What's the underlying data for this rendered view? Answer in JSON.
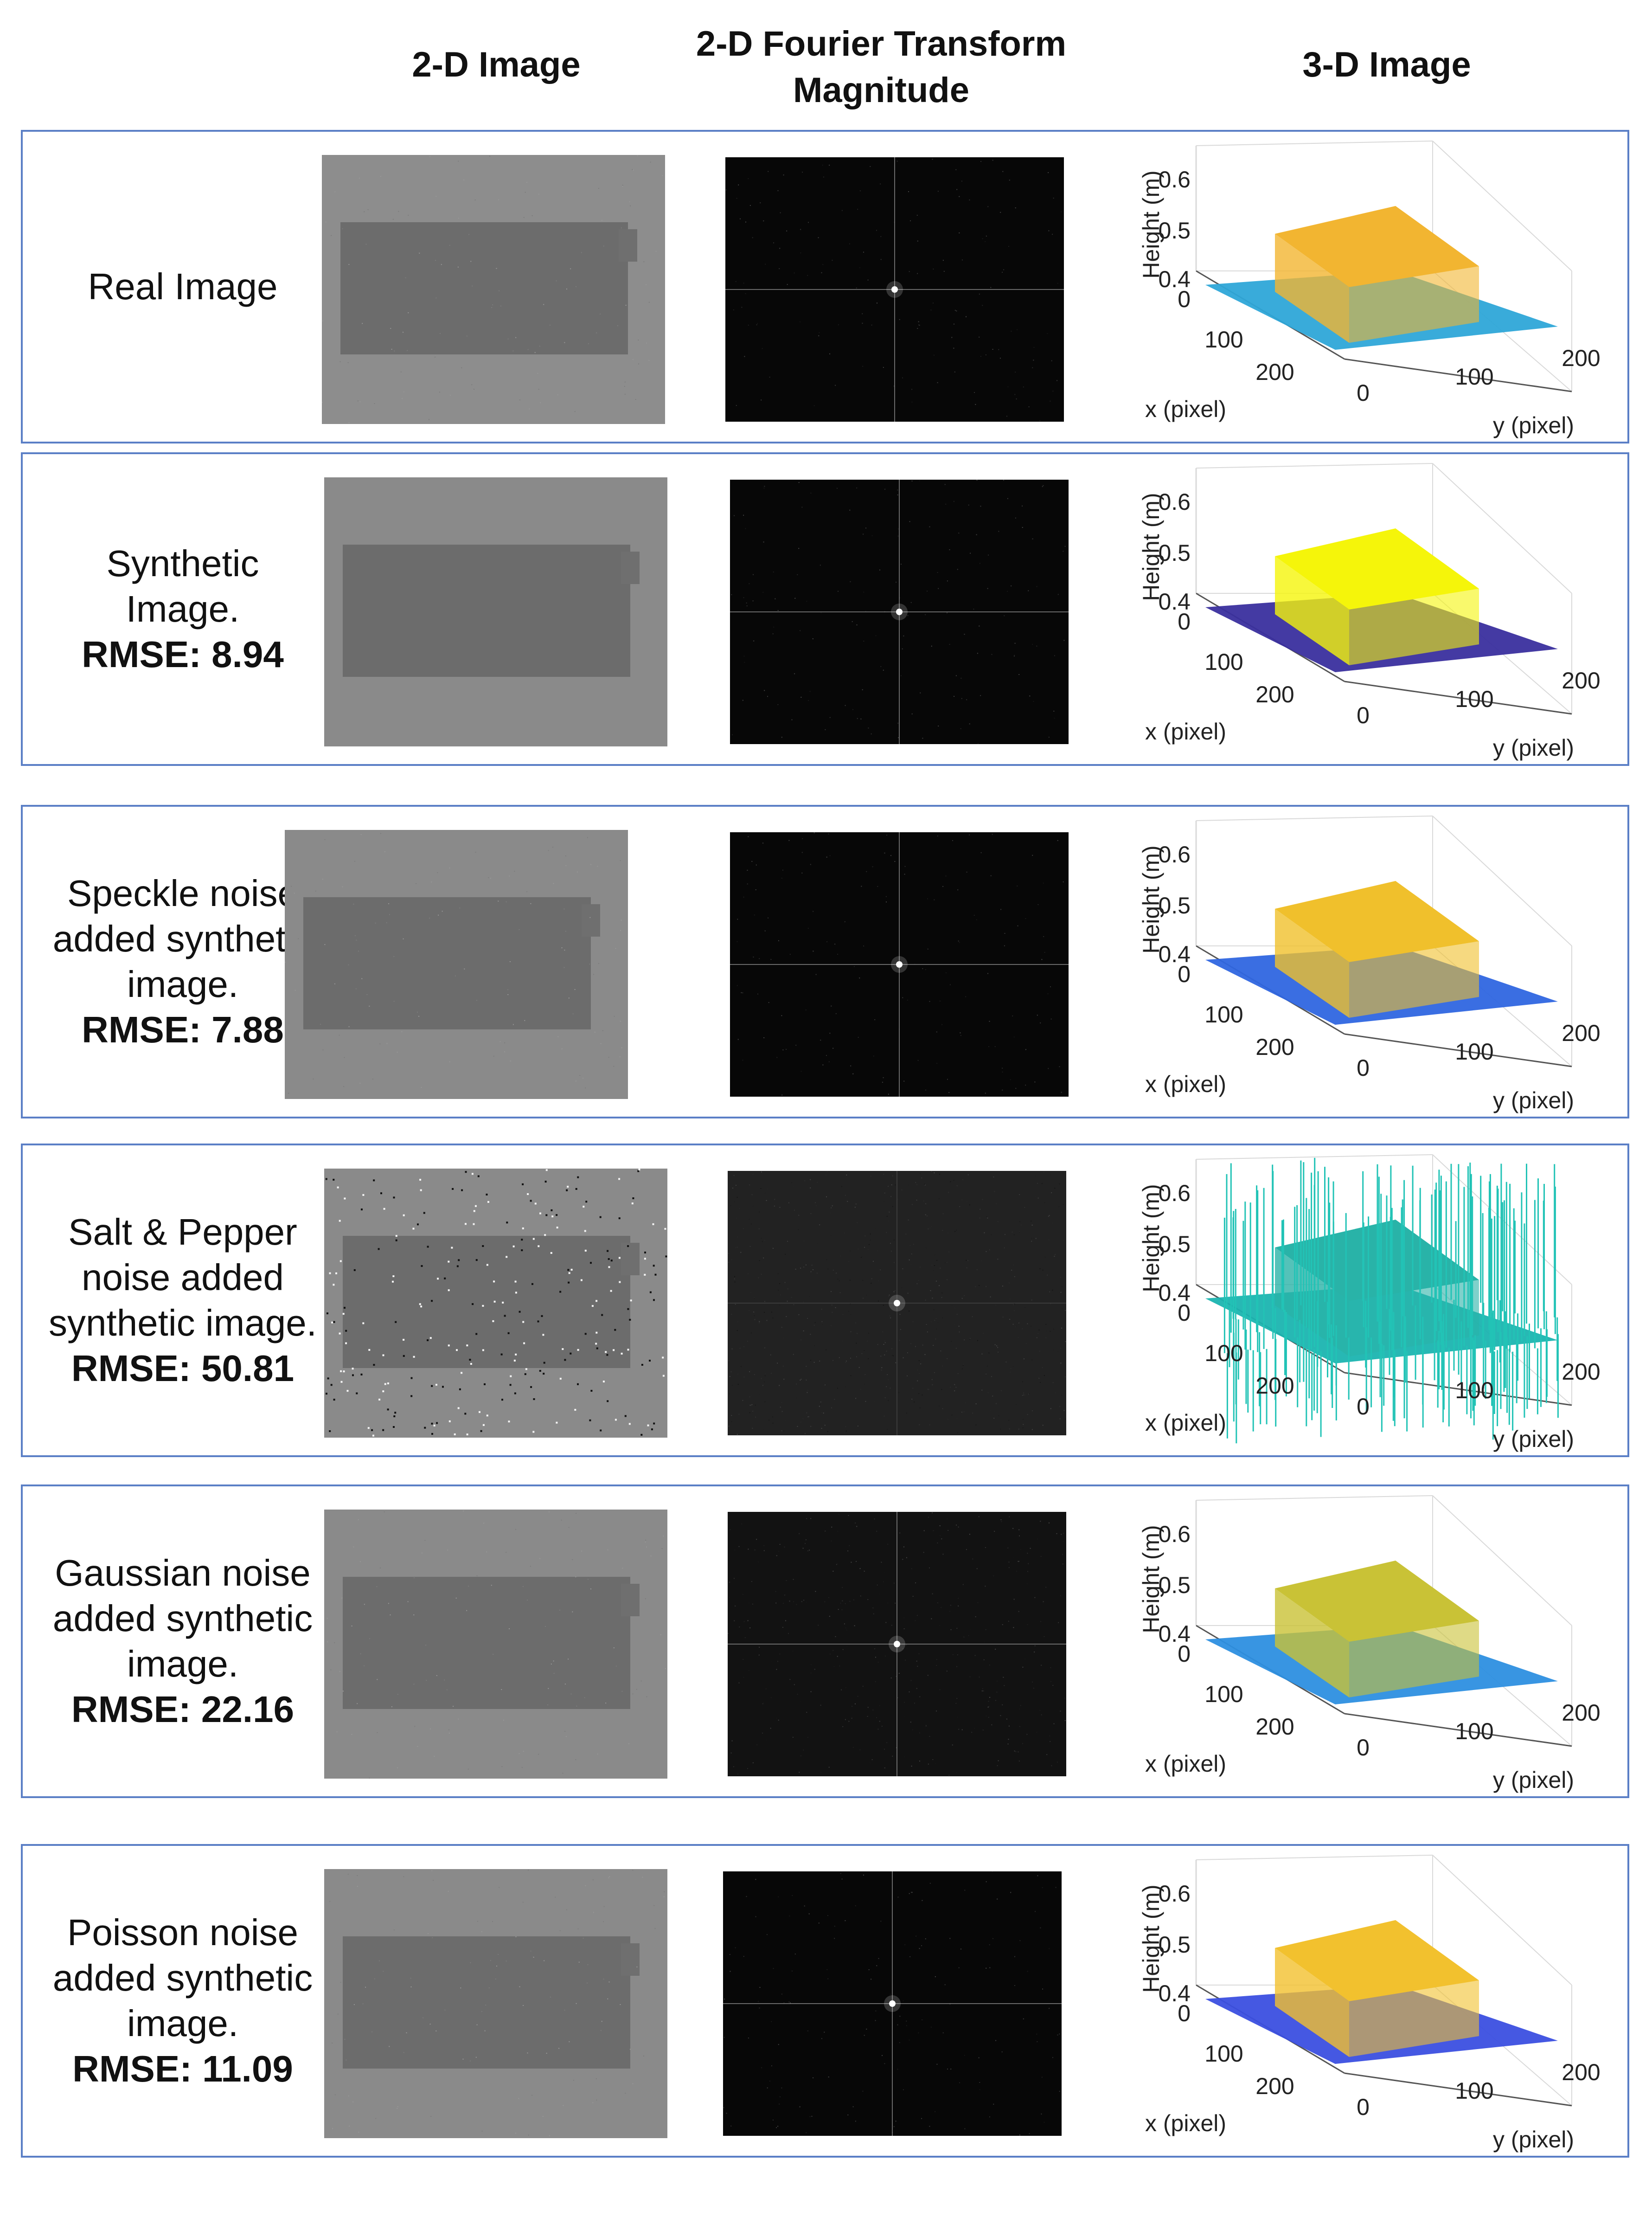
{
  "column_headers": {
    "image_2d": "2-D Image",
    "fourier_line1": "2-D Fourier Transform",
    "fourier_line2": "Magnitude",
    "image_3d": "3-D Image"
  },
  "axes": {
    "z_label": "Height (m)",
    "x_label": "x (pixel)",
    "y_label": "y (pixel)",
    "z_ticks": [
      "0.6",
      "0.5",
      "0.4",
      "0"
    ],
    "x_ticks": [
      "100",
      "200"
    ],
    "y_ticks": [
      "0",
      "100",
      "200"
    ]
  },
  "rows": [
    {
      "lines": [
        "Real Image"
      ],
      "rmse": "",
      "noise": "real",
      "top_color": "#f2b531",
      "base_color": "#2ea6d8"
    },
    {
      "lines": [
        "Synthetic",
        "Image."
      ],
      "rmse": "RMSE: 8.94",
      "noise": "none",
      "top_color": "#f5f50a",
      "base_color": "#3a2f9e"
    },
    {
      "lines": [
        "Speckle noise",
        "added synthetic",
        "image."
      ],
      "rmse": "RMSE: 7.88",
      "noise": "speckle",
      "top_color": "#f0c02c",
      "base_color": "#2f66e0"
    },
    {
      "lines": [
        "Salt & Pepper",
        "noise added",
        "synthetic image."
      ],
      "rmse": "RMSE: 50.81",
      "noise": "saltpepper",
      "top_color": "#29b3a8",
      "base_color": "#1bb4b0"
    },
    {
      "lines": [
        "Gaussian noise",
        "added synthetic",
        "image."
      ],
      "rmse": "RMSE: 22.16",
      "noise": "gaussian",
      "top_color": "#c9c236",
      "base_color": "#2d8fe0"
    },
    {
      "lines": [
        "Poisson noise",
        "added synthetic",
        "image."
      ],
      "rmse": "RMSE: 11.09",
      "noise": "poisson",
      "top_color": "#f2c12e",
      "base_color": "#3b4fe0"
    }
  ]
}
